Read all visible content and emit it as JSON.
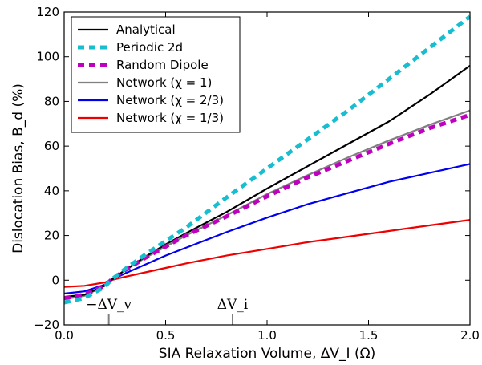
{
  "chart_data": {
    "type": "line",
    "xlabel": "SIA Relaxation Volume, ΔV_I (Ω)",
    "ylabel": "Dislocation Bias, B_d (%)",
    "xlim": [
      0.0,
      2.0
    ],
    "ylim": [
      -20,
      120
    ],
    "x_ticks": [
      "0.0",
      "0.5",
      "1.0",
      "1.5",
      "2.0"
    ],
    "y_ticks": [
      "−20",
      "0",
      "20",
      "40",
      "60",
      "80",
      "100",
      "120"
    ],
    "grid": false,
    "legend_position": "top-left",
    "x": [
      0.0,
      0.1,
      0.2,
      0.23,
      0.3,
      0.4,
      0.5,
      0.6,
      0.8,
      1.0,
      1.2,
      1.4,
      1.6,
      1.8,
      2.0
    ],
    "series": [
      {
        "name": "Analytical",
        "color": "#000000",
        "dash": "solid",
        "values": [
          -7.5,
          -6.5,
          -2.5,
          0.0,
          4.5,
          10.5,
          16.0,
          21.0,
          30.5,
          41.0,
          51.0,
          61.0,
          71.0,
          83.0,
          96.0
        ]
      },
      {
        "name": "Periodic 2d",
        "color": "#17becf",
        "dash": "dashed",
        "values": [
          -10.0,
          -8.0,
          -3.0,
          0.0,
          5.0,
          11.5,
          17.5,
          23.5,
          37.0,
          50.0,
          63.0,
          76.0,
          90.0,
          104.0,
          118.0
        ]
      },
      {
        "name": "Random Dipole",
        "color": "#bf00bf",
        "dash": "dashed",
        "values": [
          -8.0,
          -6.5,
          -2.5,
          0.0,
          4.5,
          10.0,
          15.0,
          20.0,
          28.5,
          37.5,
          46.0,
          53.5,
          61.0,
          68.0,
          74.0
        ]
      },
      {
        "name": "Network (χ = 1)",
        "color": "#808080",
        "dash": "solid",
        "values": [
          -8.5,
          -7.0,
          -2.5,
          0.0,
          4.5,
          10.0,
          15.0,
          20.0,
          29.0,
          38.5,
          47.0,
          55.0,
          62.5,
          69.5,
          76.0
        ]
      },
      {
        "name": "Network (χ = 2/3)",
        "color": "#0000ee",
        "dash": "solid",
        "values": [
          -6.0,
          -5.0,
          -2.0,
          0.0,
          3.0,
          7.0,
          11.0,
          14.5,
          21.5,
          28.0,
          34.0,
          39.0,
          44.0,
          48.0,
          52.0
        ]
      },
      {
        "name": "Network (χ = 1/3)",
        "color": "#ee0000",
        "dash": "solid",
        "values": [
          -3.0,
          -2.5,
          -1.0,
          0.0,
          1.5,
          3.5,
          5.5,
          7.5,
          11.0,
          14.0,
          17.0,
          19.5,
          22.0,
          24.5,
          27.0
        ]
      }
    ],
    "annotations": [
      {
        "label": "−ΔV_v",
        "x": 0.22
      },
      {
        "label": "ΔV_i",
        "x": 0.83
      }
    ]
  }
}
